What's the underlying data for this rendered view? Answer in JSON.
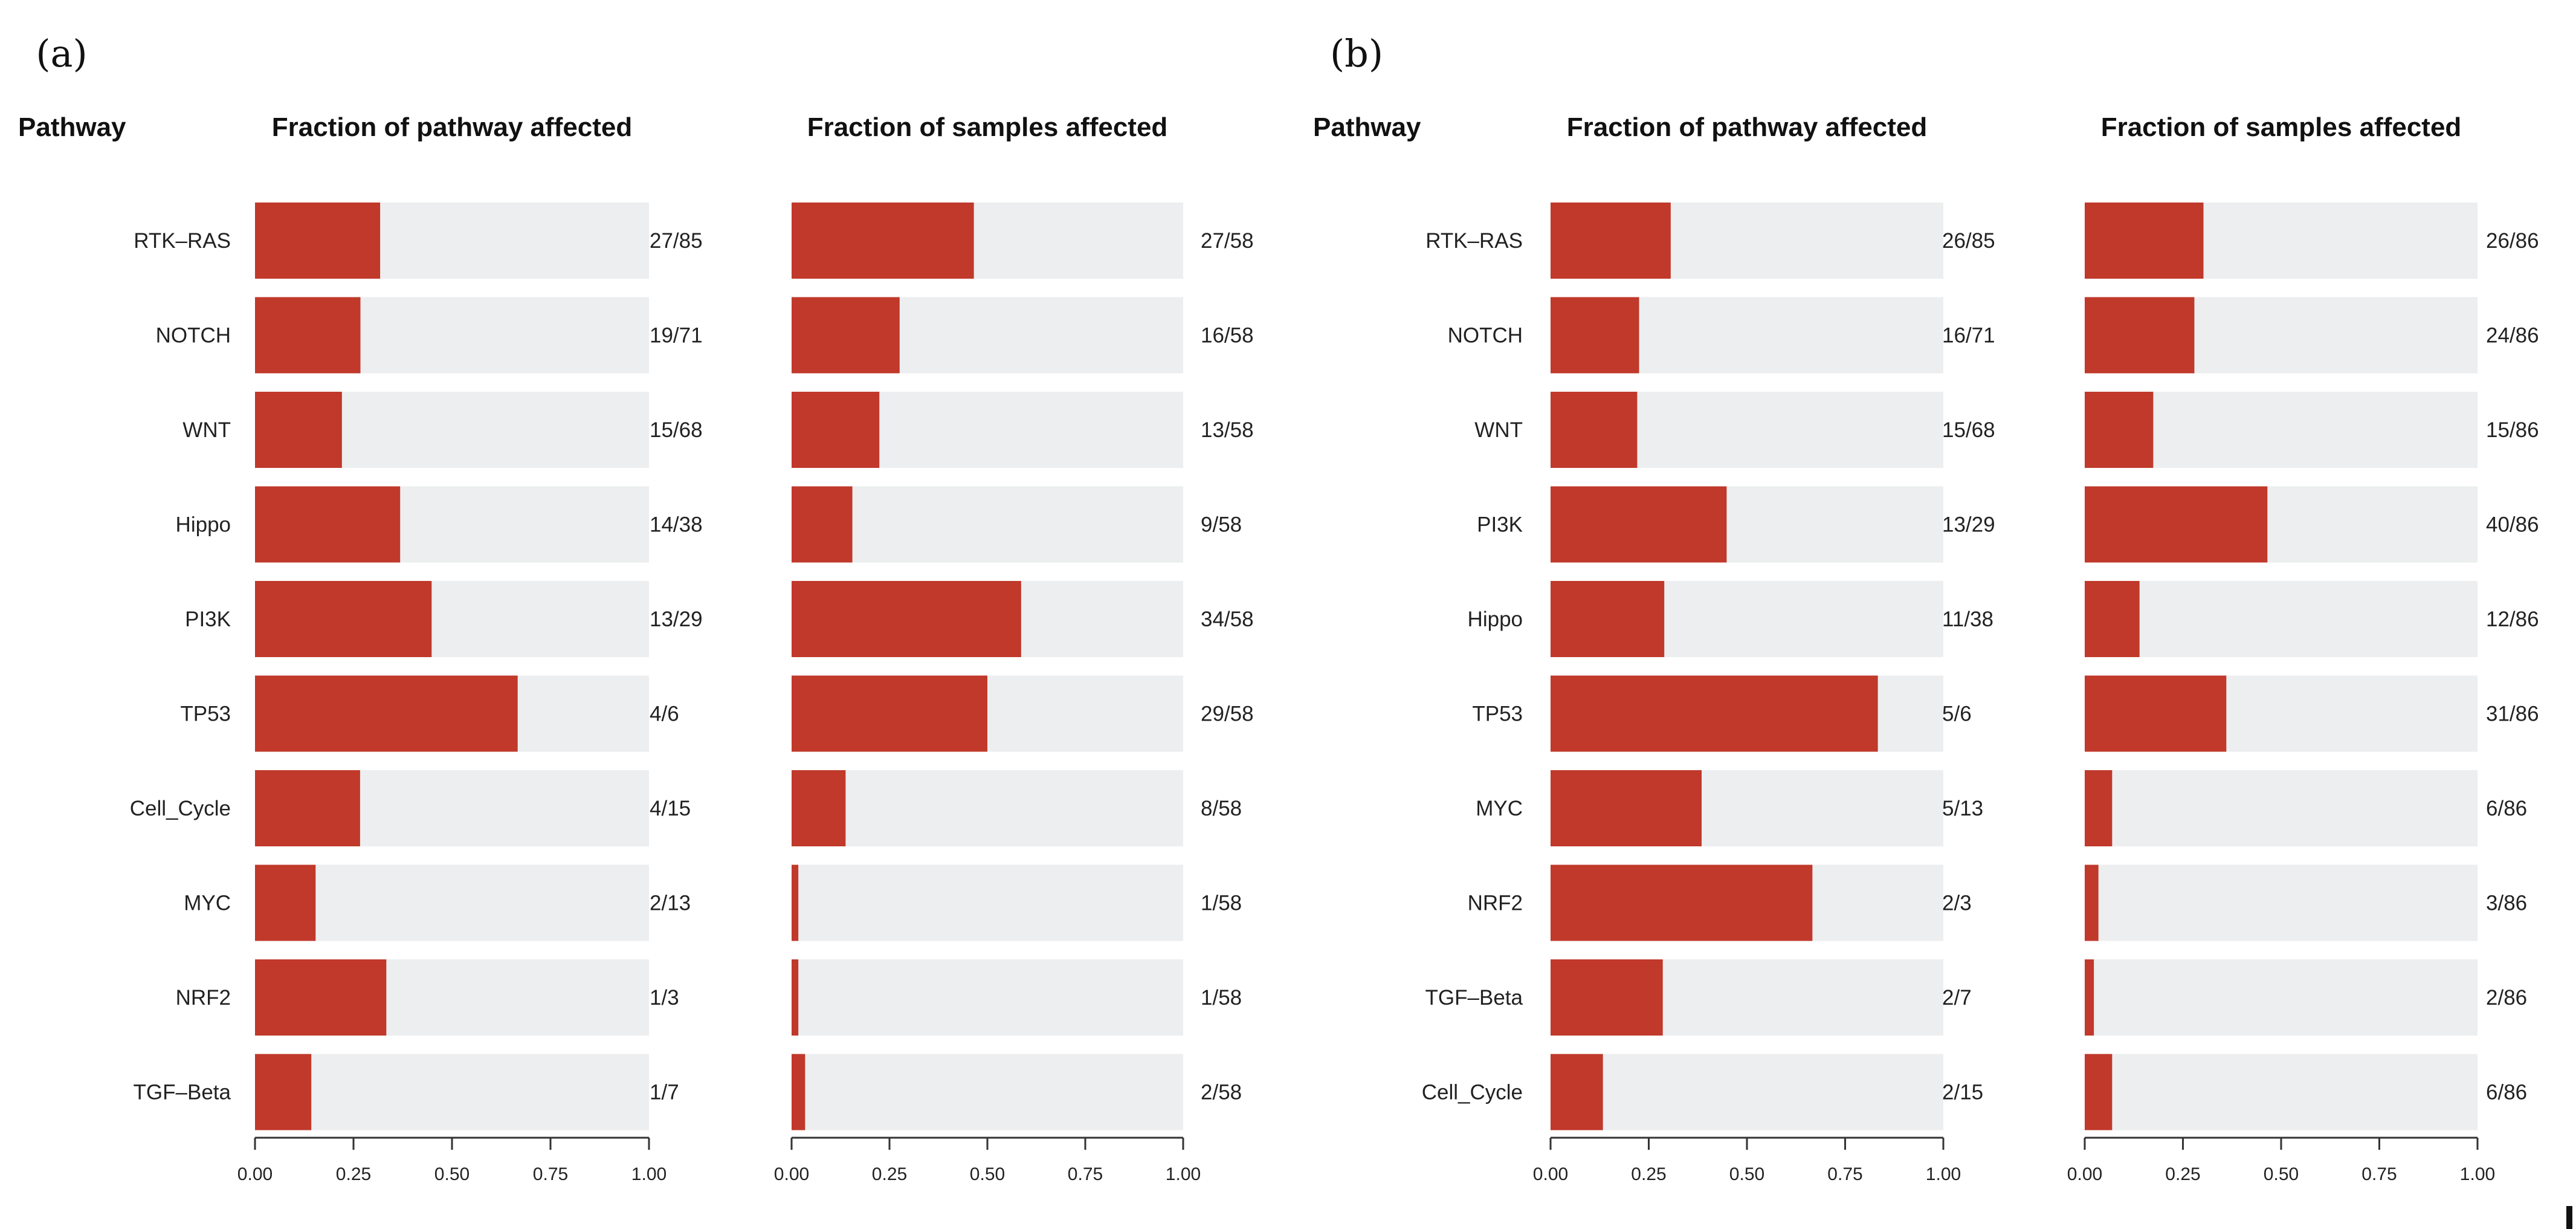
{
  "chart_data": [
    {
      "type": "bar",
      "panel_label": "(a)",
      "category_header": "Pathway",
      "categories": [
        "RTK–RAS",
        "NOTCH",
        "WNT",
        "Hippo",
        "PI3K",
        "TP53",
        "Cell_Cycle",
        "MYC",
        "NRF2",
        "TGF–Beta"
      ],
      "xlim": [
        0,
        1
      ],
      "xticks": [
        "0.00",
        "0.25",
        "0.50",
        "0.75",
        "1.00"
      ],
      "grid": false,
      "colors": {
        "bar": "#C0392B",
        "background": "#ECEEEF"
      },
      "series": [
        {
          "title": "Fraction of pathway affected",
          "values": [
            0.3176,
            0.2676,
            0.2206,
            0.3684,
            0.4483,
            0.6667,
            0.2667,
            0.1538,
            0.3333,
            0.1429
          ],
          "labels": [
            "27/85",
            "19/71",
            "15/68",
            "14/38",
            "13/29",
            "4/6",
            "4/15",
            "2/13",
            "1/3",
            "1/7"
          ]
        },
        {
          "title": "Fraction of samples affected",
          "values": [
            0.4655,
            0.2759,
            0.2241,
            0.1552,
            0.5862,
            0.5,
            0.1379,
            0.0172,
            0.0172,
            0.0345
          ],
          "labels": [
            "27/58",
            "16/58",
            "13/58",
            "9/58",
            "34/58",
            "29/58",
            "8/58",
            "1/58",
            "1/58",
            "2/58"
          ]
        }
      ]
    },
    {
      "type": "bar",
      "panel_label": "(b)",
      "category_header": "Pathway",
      "categories": [
        "RTK–RAS",
        "NOTCH",
        "WNT",
        "PI3K",
        "Hippo",
        "TP53",
        "MYC",
        "NRF2",
        "TGF–Beta",
        "Cell_Cycle"
      ],
      "xlim": [
        0,
        1
      ],
      "xticks": [
        "0.00",
        "0.25",
        "0.50",
        "0.75",
        "1.00"
      ],
      "grid": false,
      "colors": {
        "bar": "#C0392B",
        "background": "#ECEEEF"
      },
      "series": [
        {
          "title": "Fraction of pathway affected",
          "values": [
            0.3059,
            0.2254,
            0.2206,
            0.4483,
            0.2895,
            0.8333,
            0.3846,
            0.6667,
            0.2857,
            0.1333
          ],
          "labels": [
            "26/85",
            "16/71",
            "15/68",
            "13/29",
            "11/38",
            "5/6",
            "5/13",
            "2/3",
            "2/7",
            "2/15"
          ]
        },
        {
          "title": "Fraction of samples affected",
          "values": [
            0.3023,
            0.2791,
            0.1744,
            0.4651,
            0.1395,
            0.3605,
            0.0698,
            0.0349,
            0.0233,
            0.0698
          ],
          "labels": [
            "26/86",
            "24/86",
            "15/86",
            "40/86",
            "12/86",
            "31/86",
            "6/86",
            "3/86",
            "2/86",
            "6/86"
          ]
        }
      ]
    }
  ]
}
